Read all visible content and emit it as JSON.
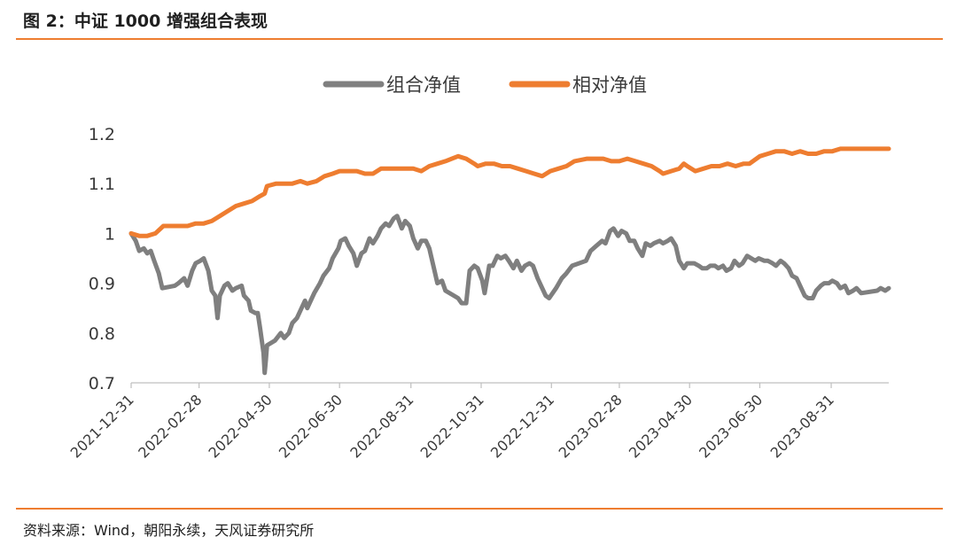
{
  "figure": {
    "title": "图 2：中证 1000 增强组合表现",
    "source": "资料来源：Wind，朝阳永续，天风证券研究所"
  },
  "chart_data": {
    "type": "line",
    "title": "",
    "xlabel": "",
    "ylabel": "",
    "ylim": [
      0.7,
      1.2
    ],
    "yticks": [
      "0.7",
      "0.8",
      "0.9",
      "1",
      "1.1",
      "1.2"
    ],
    "grid": false,
    "legend_position": "top",
    "x_tick_labels": [
      "2021-12-31",
      "2022-02-28",
      "2022-04-30",
      "2022-06-30",
      "2022-08-31",
      "2022-10-31",
      "2022-12-31",
      "2023-02-28",
      "2023-04-30",
      "2023-06-30",
      "2023-08-31"
    ],
    "x_range": [
      "2021-12-31",
      "2023-10-20"
    ],
    "series": [
      {
        "name": "组合净值",
        "color": "#7f7f7f",
        "points": [
          [
            "2021-12-31",
            1.0
          ],
          [
            "2022-01-04",
            0.985
          ],
          [
            "2022-01-07",
            0.965
          ],
          [
            "2022-01-11",
            0.97
          ],
          [
            "2022-01-14",
            0.96
          ],
          [
            "2022-01-17",
            0.965
          ],
          [
            "2022-01-20",
            0.945
          ],
          [
            "2022-01-24",
            0.92
          ],
          [
            "2022-01-27",
            0.89
          ],
          [
            "2022-02-07",
            0.895
          ],
          [
            "2022-02-10",
            0.9
          ],
          [
            "2022-02-15",
            0.91
          ],
          [
            "2022-02-18",
            0.895
          ],
          [
            "2022-02-22",
            0.925
          ],
          [
            "2022-02-25",
            0.94
          ],
          [
            "2022-03-01",
            0.945
          ],
          [
            "2022-03-04",
            0.95
          ],
          [
            "2022-03-08",
            0.925
          ],
          [
            "2022-03-11",
            0.885
          ],
          [
            "2022-03-14",
            0.875
          ],
          [
            "2022-03-16",
            0.83
          ],
          [
            "2022-03-18",
            0.875
          ],
          [
            "2022-03-22",
            0.895
          ],
          [
            "2022-03-25",
            0.9
          ],
          [
            "2022-03-29",
            0.885
          ],
          [
            "2022-04-01",
            0.89
          ],
          [
            "2022-04-06",
            0.895
          ],
          [
            "2022-04-08",
            0.875
          ],
          [
            "2022-04-12",
            0.865
          ],
          [
            "2022-04-14",
            0.845
          ],
          [
            "2022-04-18",
            0.84
          ],
          [
            "2022-04-20",
            0.84
          ],
          [
            "2022-04-22",
            0.81
          ],
          [
            "2022-04-25",
            0.76
          ],
          [
            "2022-04-26",
            0.72
          ],
          [
            "2022-04-27",
            0.745
          ],
          [
            "2022-04-28",
            0.775
          ],
          [
            "2022-05-05",
            0.785
          ],
          [
            "2022-05-10",
            0.8
          ],
          [
            "2022-05-13",
            0.79
          ],
          [
            "2022-05-17",
            0.8
          ],
          [
            "2022-05-20",
            0.82
          ],
          [
            "2022-05-24",
            0.83
          ],
          [
            "2022-05-27",
            0.845
          ],
          [
            "2022-05-31",
            0.865
          ],
          [
            "2022-06-02",
            0.85
          ],
          [
            "2022-06-08",
            0.88
          ],
          [
            "2022-06-13",
            0.9
          ],
          [
            "2022-06-16",
            0.915
          ],
          [
            "2022-06-21",
            0.93
          ],
          [
            "2022-06-24",
            0.95
          ],
          [
            "2022-06-29",
            0.97
          ],
          [
            "2022-07-01",
            0.985
          ],
          [
            "2022-07-05",
            0.99
          ],
          [
            "2022-07-08",
            0.975
          ],
          [
            "2022-07-12",
            0.96
          ],
          [
            "2022-07-15",
            0.935
          ],
          [
            "2022-07-19",
            0.96
          ],
          [
            "2022-07-22",
            0.965
          ],
          [
            "2022-07-26",
            0.99
          ],
          [
            "2022-07-29",
            0.98
          ],
          [
            "2022-08-02",
            0.995
          ],
          [
            "2022-08-05",
            1.01
          ],
          [
            "2022-08-09",
            1.02
          ],
          [
            "2022-08-12",
            1.015
          ],
          [
            "2022-08-16",
            1.03
          ],
          [
            "2022-08-19",
            1.035
          ],
          [
            "2022-08-23",
            1.01
          ],
          [
            "2022-08-26",
            1.025
          ],
          [
            "2022-08-30",
            1.015
          ],
          [
            "2022-09-02",
            0.99
          ],
          [
            "2022-09-06",
            0.97
          ],
          [
            "2022-09-09",
            0.985
          ],
          [
            "2022-09-13",
            0.985
          ],
          [
            "2022-09-16",
            0.97
          ],
          [
            "2022-09-20",
            0.93
          ],
          [
            "2022-09-23",
            0.9
          ],
          [
            "2022-09-27",
            0.905
          ],
          [
            "2022-09-30",
            0.885
          ],
          [
            "2022-10-11",
            0.87
          ],
          [
            "2022-10-14",
            0.86
          ],
          [
            "2022-10-18",
            0.86
          ],
          [
            "2022-10-21",
            0.925
          ],
          [
            "2022-10-25",
            0.935
          ],
          [
            "2022-10-28",
            0.93
          ],
          [
            "2022-11-01",
            0.905
          ],
          [
            "2022-11-03",
            0.88
          ],
          [
            "2022-11-07",
            0.935
          ],
          [
            "2022-11-10",
            0.935
          ],
          [
            "2022-11-14",
            0.955
          ],
          [
            "2022-11-17",
            0.95
          ],
          [
            "2022-11-21",
            0.955
          ],
          [
            "2022-11-24",
            0.945
          ],
          [
            "2022-11-28",
            0.93
          ],
          [
            "2022-12-01",
            0.945
          ],
          [
            "2022-12-05",
            0.925
          ],
          [
            "2022-12-08",
            0.935
          ],
          [
            "2022-12-12",
            0.94
          ],
          [
            "2022-12-15",
            0.935
          ],
          [
            "2022-12-19",
            0.91
          ],
          [
            "2022-12-22",
            0.895
          ],
          [
            "2022-12-26",
            0.875
          ],
          [
            "2022-12-29",
            0.87
          ],
          [
            "2023-01-04",
            0.89
          ],
          [
            "2023-01-09",
            0.91
          ],
          [
            "2023-01-13",
            0.92
          ],
          [
            "2023-01-18",
            0.935
          ],
          [
            "2023-01-30",
            0.945
          ],
          [
            "2023-02-03",
            0.965
          ],
          [
            "2023-02-08",
            0.975
          ],
          [
            "2023-02-13",
            0.985
          ],
          [
            "2023-02-16",
            0.98
          ],
          [
            "2023-02-20",
            1.005
          ],
          [
            "2023-02-23",
            1.01
          ],
          [
            "2023-02-27",
            0.995
          ],
          [
            "2023-03-02",
            1.005
          ],
          [
            "2023-03-06",
            1.0
          ],
          [
            "2023-03-09",
            0.985
          ],
          [
            "2023-03-13",
            0.985
          ],
          [
            "2023-03-16",
            0.97
          ],
          [
            "2023-03-20",
            0.955
          ],
          [
            "2023-03-23",
            0.98
          ],
          [
            "2023-03-27",
            0.975
          ],
          [
            "2023-03-30",
            0.98
          ],
          [
            "2023-04-04",
            0.985
          ],
          [
            "2023-04-07",
            0.98
          ],
          [
            "2023-04-11",
            0.985
          ],
          [
            "2023-04-14",
            0.99
          ],
          [
            "2023-04-18",
            0.975
          ],
          [
            "2023-04-21",
            0.945
          ],
          [
            "2023-04-25",
            0.93
          ],
          [
            "2023-04-28",
            0.94
          ],
          [
            "2023-05-04",
            0.94
          ],
          [
            "2023-05-08",
            0.935
          ],
          [
            "2023-05-11",
            0.93
          ],
          [
            "2023-05-15",
            0.93
          ],
          [
            "2023-05-18",
            0.935
          ],
          [
            "2023-05-22",
            0.935
          ],
          [
            "2023-05-25",
            0.93
          ],
          [
            "2023-05-29",
            0.935
          ],
          [
            "2023-06-01",
            0.925
          ],
          [
            "2023-06-05",
            0.93
          ],
          [
            "2023-06-08",
            0.945
          ],
          [
            "2023-06-12",
            0.935
          ],
          [
            "2023-06-15",
            0.94
          ],
          [
            "2023-06-19",
            0.955
          ],
          [
            "2023-06-26",
            0.945
          ],
          [
            "2023-06-29",
            0.95
          ],
          [
            "2023-07-04",
            0.945
          ],
          [
            "2023-07-07",
            0.945
          ],
          [
            "2023-07-11",
            0.94
          ],
          [
            "2023-07-14",
            0.935
          ],
          [
            "2023-07-18",
            0.945
          ],
          [
            "2023-07-21",
            0.94
          ],
          [
            "2023-07-25",
            0.93
          ],
          [
            "2023-07-28",
            0.915
          ],
          [
            "2023-08-01",
            0.91
          ],
          [
            "2023-08-04",
            0.895
          ],
          [
            "2023-08-08",
            0.875
          ],
          [
            "2023-08-11",
            0.87
          ],
          [
            "2023-08-15",
            0.87
          ],
          [
            "2023-08-18",
            0.885
          ],
          [
            "2023-08-22",
            0.895
          ],
          [
            "2023-08-25",
            0.9
          ],
          [
            "2023-08-29",
            0.9
          ],
          [
            "2023-09-01",
            0.905
          ],
          [
            "2023-09-05",
            0.9
          ],
          [
            "2023-09-08",
            0.89
          ],
          [
            "2023-09-12",
            0.895
          ],
          [
            "2023-09-15",
            0.88
          ],
          [
            "2023-09-19",
            0.885
          ],
          [
            "2023-09-22",
            0.89
          ],
          [
            "2023-09-26",
            0.88
          ],
          [
            "2023-10-10",
            0.885
          ],
          [
            "2023-10-13",
            0.89
          ],
          [
            "2023-10-17",
            0.885
          ],
          [
            "2023-10-20",
            0.89
          ]
        ]
      },
      {
        "name": "相对净值",
        "color": "#ee7d30",
        "points": [
          [
            "2021-12-31",
            1.0
          ],
          [
            "2022-01-07",
            0.995
          ],
          [
            "2022-01-14",
            0.995
          ],
          [
            "2022-01-21",
            1.0
          ],
          [
            "2022-01-28",
            1.015
          ],
          [
            "2022-02-11",
            1.015
          ],
          [
            "2022-02-18",
            1.015
          ],
          [
            "2022-02-25",
            1.02
          ],
          [
            "2022-03-04",
            1.02
          ],
          [
            "2022-03-11",
            1.025
          ],
          [
            "2022-03-18",
            1.035
          ],
          [
            "2022-03-25",
            1.045
          ],
          [
            "2022-04-01",
            1.055
          ],
          [
            "2022-04-08",
            1.06
          ],
          [
            "2022-04-15",
            1.065
          ],
          [
            "2022-04-22",
            1.075
          ],
          [
            "2022-04-26",
            1.08
          ],
          [
            "2022-04-28",
            1.095
          ],
          [
            "2022-05-06",
            1.1
          ],
          [
            "2022-05-13",
            1.1
          ],
          [
            "2022-05-20",
            1.1
          ],
          [
            "2022-05-27",
            1.105
          ],
          [
            "2022-06-02",
            1.1
          ],
          [
            "2022-06-10",
            1.105
          ],
          [
            "2022-06-17",
            1.115
          ],
          [
            "2022-06-24",
            1.12
          ],
          [
            "2022-06-30",
            1.125
          ],
          [
            "2022-07-08",
            1.125
          ],
          [
            "2022-07-15",
            1.125
          ],
          [
            "2022-07-22",
            1.12
          ],
          [
            "2022-07-29",
            1.12
          ],
          [
            "2022-08-05",
            1.13
          ],
          [
            "2022-08-12",
            1.13
          ],
          [
            "2022-08-19",
            1.13
          ],
          [
            "2022-08-26",
            1.13
          ],
          [
            "2022-09-02",
            1.13
          ],
          [
            "2022-09-09",
            1.125
          ],
          [
            "2022-09-16",
            1.135
          ],
          [
            "2022-09-23",
            1.14
          ],
          [
            "2022-09-30",
            1.145
          ],
          [
            "2022-10-11",
            1.155
          ],
          [
            "2022-10-18",
            1.15
          ],
          [
            "2022-10-25",
            1.14
          ],
          [
            "2022-10-28",
            1.135
          ],
          [
            "2022-11-04",
            1.14
          ],
          [
            "2022-11-11",
            1.14
          ],
          [
            "2022-11-18",
            1.135
          ],
          [
            "2022-11-25",
            1.135
          ],
          [
            "2022-12-02",
            1.13
          ],
          [
            "2022-12-09",
            1.125
          ],
          [
            "2022-12-16",
            1.12
          ],
          [
            "2022-12-23",
            1.115
          ],
          [
            "2022-12-30",
            1.125
          ],
          [
            "2023-01-06",
            1.13
          ],
          [
            "2023-01-13",
            1.135
          ],
          [
            "2023-01-20",
            1.145
          ],
          [
            "2023-01-31",
            1.15
          ],
          [
            "2023-02-07",
            1.15
          ],
          [
            "2023-02-14",
            1.15
          ],
          [
            "2023-02-21",
            1.145
          ],
          [
            "2023-02-28",
            1.145
          ],
          [
            "2023-03-07",
            1.15
          ],
          [
            "2023-03-14",
            1.145
          ],
          [
            "2023-03-21",
            1.14
          ],
          [
            "2023-03-28",
            1.135
          ],
          [
            "2023-04-04",
            1.125
          ],
          [
            "2023-04-07",
            1.12
          ],
          [
            "2023-04-14",
            1.125
          ],
          [
            "2023-04-21",
            1.13
          ],
          [
            "2023-04-25",
            1.14
          ],
          [
            "2023-04-28",
            1.135
          ],
          [
            "2023-05-05",
            1.125
          ],
          [
            "2023-05-12",
            1.13
          ],
          [
            "2023-05-19",
            1.135
          ],
          [
            "2023-05-26",
            1.135
          ],
          [
            "2023-06-02",
            1.14
          ],
          [
            "2023-06-09",
            1.135
          ],
          [
            "2023-06-16",
            1.14
          ],
          [
            "2023-06-21",
            1.14
          ],
          [
            "2023-06-30",
            1.155
          ],
          [
            "2023-07-07",
            1.16
          ],
          [
            "2023-07-14",
            1.165
          ],
          [
            "2023-07-21",
            1.165
          ],
          [
            "2023-07-28",
            1.16
          ],
          [
            "2023-08-04",
            1.165
          ],
          [
            "2023-08-11",
            1.16
          ],
          [
            "2023-08-18",
            1.16
          ],
          [
            "2023-08-25",
            1.165
          ],
          [
            "2023-09-01",
            1.165
          ],
          [
            "2023-09-08",
            1.17
          ],
          [
            "2023-09-15",
            1.17
          ],
          [
            "2023-09-22",
            1.17
          ],
          [
            "2023-10-13",
            1.17
          ],
          [
            "2023-10-20",
            1.17
          ]
        ]
      }
    ]
  }
}
